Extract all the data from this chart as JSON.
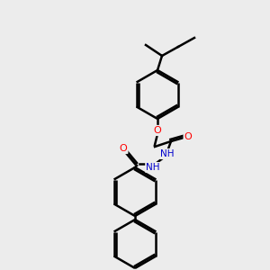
{
  "background_color": "#ececec",
  "line_color": "#000000",
  "bond_width": 1.8,
  "atom_colors": {
    "O": "#ff0000",
    "N": "#0000cd",
    "C": "#000000",
    "H": "#7f7f7f"
  }
}
